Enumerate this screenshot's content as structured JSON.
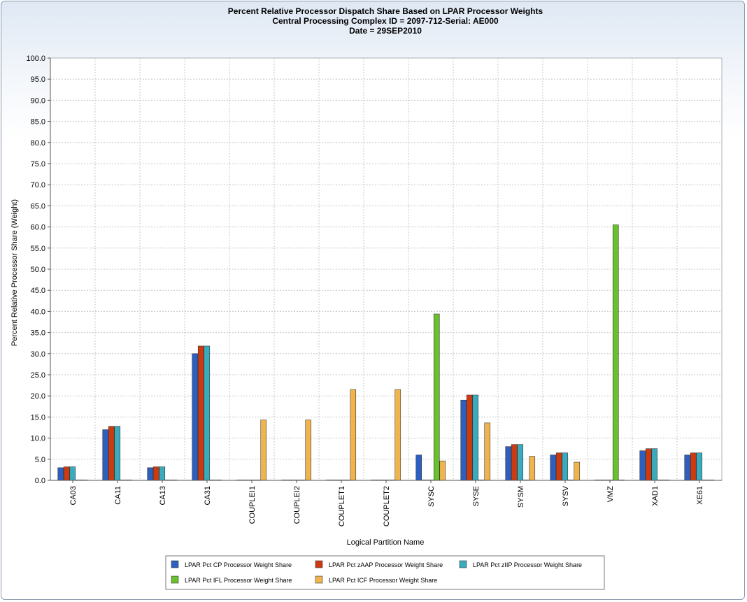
{
  "chart_data": {
    "type": "bar",
    "title": [
      "Percent Relative Processor Dispatch Share Based on LPAR Processor Weights",
      "Central Processing Complex ID = 2097-712-Serial: AE000",
      "Date = 29SEP2010"
    ],
    "xlabel": "Logical Partition Name",
    "ylabel": "Percent Relative Processor Share (Weight)",
    "ylim": [
      0,
      100
    ],
    "ytick_step": 5,
    "grid": true,
    "legend_position": "bottom",
    "categories": [
      "CA03",
      "CA11",
      "CA13",
      "CA31",
      "COUPLEI1",
      "COUPLEI2",
      "COUPLET1",
      "COUPLET2",
      "SYSC",
      "SYSE",
      "SYSM",
      "SYSV",
      "VMZ",
      "XAD1",
      "XE61"
    ],
    "series": [
      {
        "name": "LPAR Pct CP Processor Weight Share",
        "color": "#2d5fbf",
        "values": [
          3.0,
          12.0,
          3.0,
          30.0,
          0,
          0,
          0,
          0,
          6.0,
          19.0,
          8.0,
          6.0,
          0,
          7.0,
          6.0
        ]
      },
      {
        "name": "LPAR Pct zAAP Processor Weight Share",
        "color": "#cc3a10",
        "values": [
          3.2,
          12.8,
          3.2,
          31.8,
          0,
          0,
          0,
          0,
          0,
          20.2,
          8.5,
          6.5,
          0,
          7.5,
          6.5
        ]
      },
      {
        "name": "LPAR Pct zIIP Processor Weight Share",
        "color": "#3aabbd",
        "values": [
          3.2,
          12.8,
          3.2,
          31.8,
          0,
          0,
          0,
          0,
          0,
          20.2,
          8.5,
          6.5,
          0,
          7.5,
          6.5
        ]
      },
      {
        "name": "LPAR Pct IFL Processor Weight Share",
        "color": "#6ac12e",
        "values": [
          0,
          0,
          0,
          0,
          0,
          0,
          0,
          0,
          39.4,
          0,
          0,
          0,
          60.5,
          0,
          0
        ]
      },
      {
        "name": "LPAR Pct ICF Processor Weight Share",
        "color": "#efb44e",
        "values": [
          0,
          0,
          0,
          0,
          14.3,
          14.3,
          21.5,
          21.5,
          4.6,
          13.6,
          5.7,
          4.3,
          0,
          0,
          0
        ]
      }
    ]
  }
}
